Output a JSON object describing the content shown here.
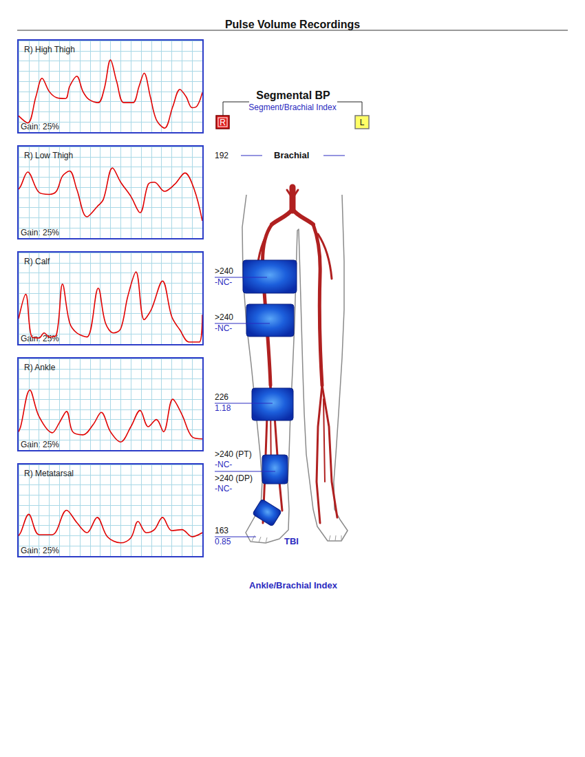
{
  "title": "Pulse Volume Recordings",
  "chart_data": [
    {
      "type": "line",
      "title": "R) High Thigh",
      "annotation": "Gain: 25%",
      "color": "#e00000",
      "grid": true,
      "tick_labels": false,
      "xlim": [
        0,
        18
      ],
      "xticks": [
        0,
        1,
        2,
        3,
        4,
        5,
        6,
        7,
        8,
        9,
        10,
        11,
        12,
        13,
        14,
        15,
        16,
        17,
        18
      ],
      "ylim": [
        0,
        9
      ],
      "yticks": [
        0,
        1,
        2,
        3,
        4,
        5,
        6,
        7,
        8,
        9
      ],
      "x": [
        0,
        0.9,
        1.7,
        2.3,
        3.0,
        3.7,
        4.6,
        5.0,
        5.7,
        6.3,
        6.9,
        7.8,
        8.4,
        9.0,
        9.6,
        10.3,
        11.2,
        11.8,
        12.3,
        12.9,
        13.5,
        14.3,
        15.1,
        15.8,
        16.4,
        17.0,
        17.5,
        18
      ],
      "values": [
        1.6,
        0.9,
        3.5,
        5.3,
        4.0,
        3.4,
        3.3,
        4.5,
        5.5,
        4.0,
        3.2,
        2.9,
        4.3,
        7.1,
        5.0,
        2.9,
        2.9,
        4.5,
        5.8,
        3.5,
        1.2,
        0.4,
        2.5,
        4.2,
        3.5,
        2.4,
        2.6,
        3.9
      ]
    },
    {
      "type": "line",
      "title": "R) Low Thigh",
      "annotation": "Gain: 25%",
      "color": "#e00000",
      "grid": true,
      "tick_labels": false,
      "xlim": [
        0,
        18
      ],
      "xticks": [
        0,
        1,
        2,
        3,
        4,
        5,
        6,
        7,
        8,
        9,
        10,
        11,
        12,
        13,
        14,
        15,
        16,
        17,
        18
      ],
      "ylim": [
        0,
        9
      ],
      "yticks": [
        0,
        1,
        2,
        3,
        4,
        5,
        6,
        7,
        8,
        9
      ],
      "x": [
        0,
        0.2,
        0.9,
        2.0,
        3.0,
        3.7,
        4.3,
        5.0,
        5.7,
        6.7,
        7.7,
        8.3,
        9.2,
        10.0,
        11.0,
        11.9,
        12.7,
        13.3,
        14.3,
        15.3,
        16.3,
        17.2,
        18
      ],
      "values": [
        4.8,
        5.1,
        6.5,
        4.5,
        4.3,
        4.6,
        6.1,
        6.6,
        4.8,
        2.1,
        3.1,
        3.8,
        6.9,
        5.5,
        4.1,
        2.5,
        5.3,
        5.5,
        4.6,
        5.3,
        6.4,
        4.8,
        1.7
      ]
    },
    {
      "type": "line",
      "title": "R) Calf",
      "annotation": "Gain: 25%",
      "color": "#e00000",
      "grid": true,
      "tick_labels": false,
      "xlim": [
        0,
        18
      ],
      "xticks": [
        0,
        1,
        2,
        3,
        4,
        5,
        6,
        7,
        8,
        9,
        10,
        11,
        12,
        13,
        14,
        15,
        16,
        17,
        18
      ],
      "ylim": [
        0,
        9
      ],
      "yticks": [
        0,
        1,
        2,
        3,
        4,
        5,
        6,
        7,
        8,
        9
      ],
      "x": [
        0,
        0.7,
        1.3,
        2.0,
        2.5,
        3.0,
        3.7,
        4.3,
        5.0,
        5.7,
        6.7,
        7.8,
        8.5,
        9.3,
        10.0,
        10.7,
        11.5,
        12.3,
        13.0,
        14.1,
        15.0,
        15.8,
        16.7,
        17.7,
        18
      ],
      "values": [
        2.5,
        4.9,
        0.7,
        0.6,
        1.1,
        0.7,
        0.9,
        5.9,
        2.1,
        1.1,
        0.7,
        5.5,
        2.1,
        1.1,
        1.5,
        4.7,
        7.1,
        2.4,
        3.4,
        6.2,
        2.7,
        1.4,
        0.2,
        0.2,
        2.9
      ]
    },
    {
      "type": "line",
      "title": "R) Ankle",
      "annotation": "Gain: 25%",
      "color": "#e00000",
      "grid": true,
      "tick_labels": false,
      "xlim": [
        0,
        18
      ],
      "xticks": [
        0,
        1,
        2,
        3,
        4,
        5,
        6,
        7,
        8,
        9,
        10,
        11,
        12,
        13,
        14,
        15,
        16,
        17,
        18
      ],
      "ylim": [
        0,
        9
      ],
      "yticks": [
        0,
        1,
        2,
        3,
        4,
        5,
        6,
        7,
        8,
        9
      ],
      "x": [
        0,
        0.2,
        1.1,
        2.0,
        3.3,
        4.0,
        4.7,
        5.3,
        6.3,
        7.3,
        8.1,
        9.0,
        10.0,
        11.0,
        11.9,
        12.7,
        13.5,
        14.2,
        15.1,
        16.0,
        17.0,
        18
      ],
      "values": [
        1.8,
        2.3,
        5.9,
        3.3,
        1.7,
        2.7,
        3.8,
        1.8,
        1.5,
        2.5,
        3.7,
        1.8,
        0.8,
        2.3,
        3.9,
        2.3,
        3.0,
        1.8,
        5.0,
        3.5,
        1.3,
        1.1
      ]
    },
    {
      "type": "line",
      "title": "R) Metatarsal",
      "annotation": "Gain: 25%",
      "color": "#e00000",
      "grid": true,
      "tick_labels": false,
      "xlim": [
        0,
        18
      ],
      "xticks": [
        0,
        1,
        2,
        3,
        4,
        5,
        6,
        7,
        8,
        9,
        10,
        11,
        12,
        13,
        14,
        15,
        16,
        17,
        18
      ],
      "ylim": [
        0,
        9
      ],
      "yticks": [
        0,
        1,
        2,
        3,
        4,
        5,
        6,
        7,
        8,
        9
      ],
      "x": [
        0,
        0.2,
        1.0,
        2.0,
        3.3,
        4.7,
        5.7,
        6.7,
        7.7,
        8.7,
        10.0,
        11.0,
        11.7,
        12.5,
        13.3,
        14.1,
        15.0,
        16.0,
        17.0,
        18
      ],
      "values": [
        2.0,
        2.3,
        4.1,
        2.1,
        2.1,
        4.5,
        3.3,
        2.3,
        3.8,
        1.9,
        1.3,
        1.8,
        3.4,
        2.3,
        2.6,
        3.8,
        2.5,
        2.6,
        1.9,
        2.3
      ]
    }
  ],
  "segmental_bp": {
    "title": "Segmental BP",
    "subtitle": "Segment/Brachial Index",
    "sides": [
      "R",
      "L"
    ],
    "brachial": {
      "label": "Brachial",
      "right": 192
    },
    "segments": [
      {
        "pressure": ">240",
        "index": "-NC-"
      },
      {
        "pressure": ">240",
        "index": "-NC-"
      },
      {
        "pressure": 226,
        "index": 1.18
      },
      {
        "pressure": ">240 (PT)",
        "index": "-NC-"
      },
      {
        "pressure": ">240 (DP)",
        "index": "-NC-"
      },
      {
        "pressure": 163,
        "index": 0.85,
        "label": "TBI"
      }
    ],
    "footer": "Ankle/Brachial Index"
  }
}
